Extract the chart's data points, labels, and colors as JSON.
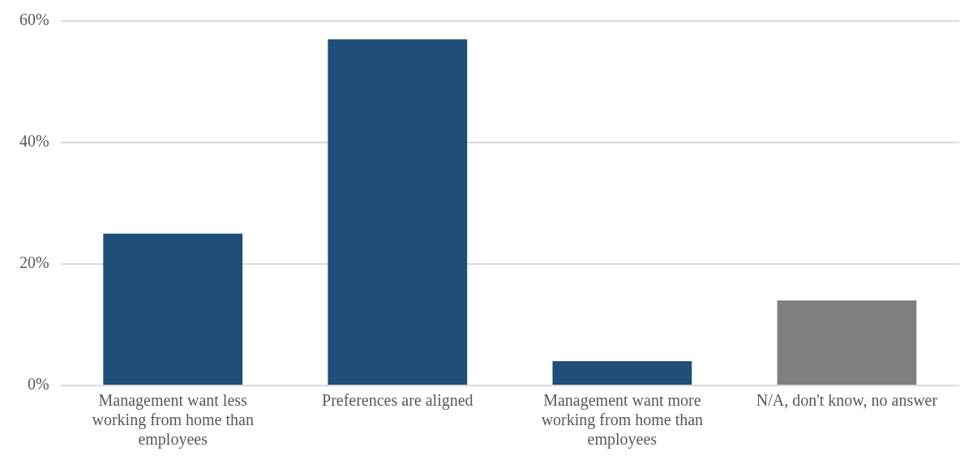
{
  "chart_data": {
    "type": "bar",
    "categories": [
      "Management want less working from home than employees",
      "Preferences are aligned",
      "Management want more working from home than employees",
      "N/A, don't know, no answer"
    ],
    "values": [
      25,
      57,
      4,
      14
    ],
    "colors": [
      "#1f4e79",
      "#1f4e79",
      "#1f4e79",
      "#7f7f7f"
    ],
    "ylim": [
      0,
      60
    ],
    "yticks": [
      {
        "value": 0,
        "label": "0%"
      },
      {
        "value": 20,
        "label": "20%"
      },
      {
        "value": 40,
        "label": "40%"
      },
      {
        "value": 60,
        "label": "60%"
      }
    ],
    "grid": "y",
    "legend": false
  }
}
